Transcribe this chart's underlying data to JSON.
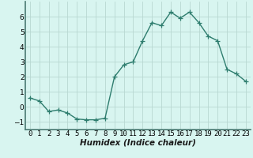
{
  "x": [
    0,
    1,
    2,
    3,
    4,
    5,
    6,
    7,
    8,
    9,
    10,
    11,
    12,
    13,
    14,
    15,
    16,
    17,
    18,
    19,
    20,
    21,
    22,
    23
  ],
  "y": [
    0.6,
    0.4,
    -0.3,
    -0.2,
    -0.4,
    -0.8,
    -0.85,
    -0.85,
    -0.75,
    2.0,
    2.8,
    3.0,
    4.4,
    5.6,
    5.4,
    6.3,
    5.9,
    6.3,
    5.6,
    4.7,
    4.4,
    2.5,
    2.2,
    1.7
  ],
  "line_color": "#2e7d6e",
  "marker": "+",
  "marker_size": 4,
  "linewidth": 1.0,
  "bg_color": "#d8f5f0",
  "grid_color": "#b8d8d2",
  "xlabel": "Humidex (Indice chaleur)",
  "xlabel_fontsize": 7.5,
  "tick_fontsize": 6.5,
  "xlim": [
    -0.5,
    23.5
  ],
  "ylim": [
    -1.5,
    7.0
  ],
  "yticks": [
    -1,
    0,
    1,
    2,
    3,
    4,
    5,
    6
  ],
  "xticks": [
    0,
    1,
    2,
    3,
    4,
    5,
    6,
    7,
    8,
    9,
    10,
    11,
    12,
    13,
    14,
    15,
    16,
    17,
    18,
    19,
    20,
    21,
    22,
    23
  ],
  "spine_color": "#4a7a72"
}
